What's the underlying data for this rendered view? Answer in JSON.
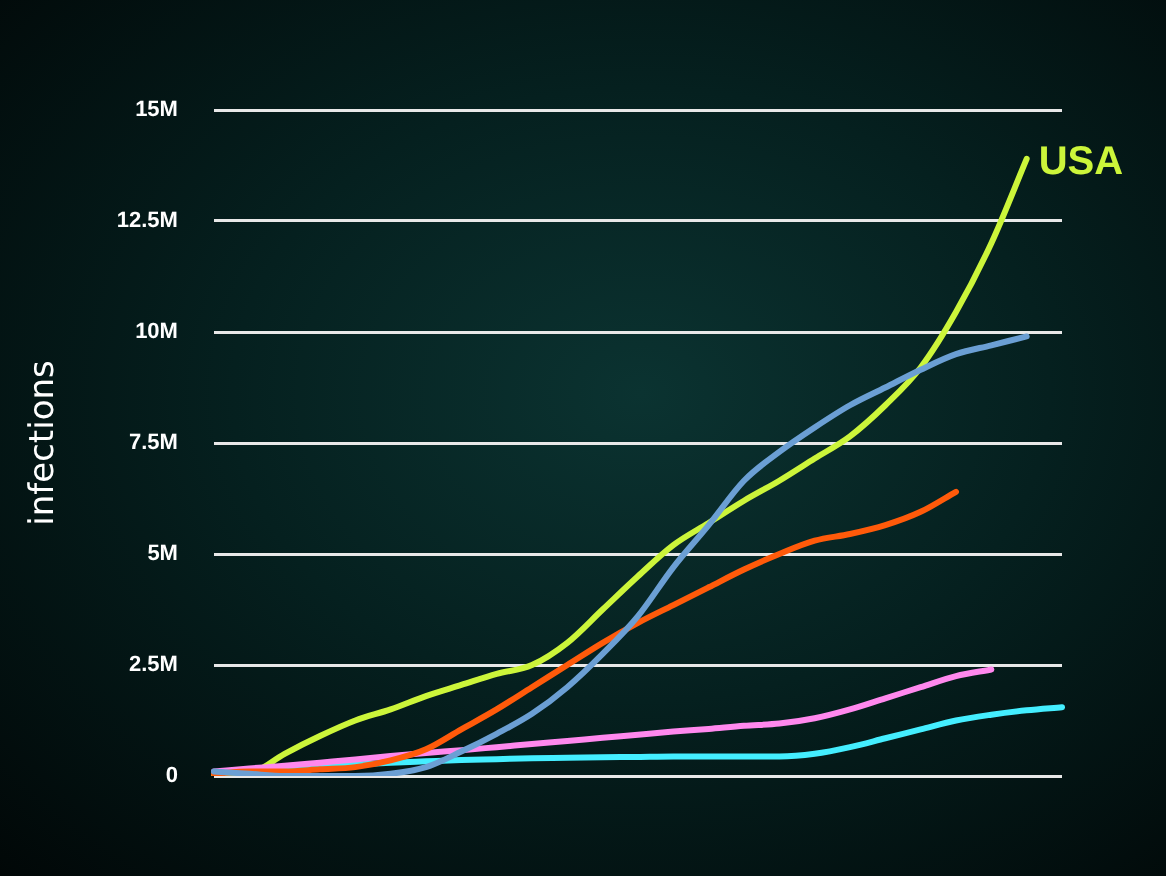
{
  "chart_data": {
    "type": "line",
    "ylabel": "infections",
    "categories": [
      null,
      null,
      null,
      null,
      null,
      null,
      null,
      null,
      null,
      null,
      null,
      null,
      null,
      null,
      null,
      null,
      null,
      null,
      null,
      null,
      null,
      null,
      null,
      null,
      null
    ],
    "ylim": [
      0,
      15
    ],
    "yticks": [
      {
        "value": 0,
        "label": "0"
      },
      {
        "value": 2.5,
        "label": "2.5M"
      },
      {
        "value": 5,
        "label": "5M"
      },
      {
        "value": 7.5,
        "label": "7.5M"
      },
      {
        "value": 10,
        "label": "10M"
      },
      {
        "value": 12.5,
        "label": "12.5M"
      },
      {
        "value": 15,
        "label": "15M"
      }
    ],
    "grid": "y",
    "tick_labels": "y",
    "legend": false,
    "marker": "none",
    "line_style": "solid",
    "series": [
      {
        "color": "#6b9fd4",
        "values": [
          0.1,
          0.05,
          0,
          0,
          0,
          0.05,
          0.2,
          0.55,
          0.95,
          1.4,
          2.0,
          2.75,
          3.6,
          4.7,
          5.65,
          6.65,
          7.3,
          7.85,
          8.35,
          8.75,
          9.15,
          9.5,
          9.7,
          9.9,
          null
        ]
      },
      {
        "color": "#ff5a0a",
        "values": [
          0.05,
          0.1,
          0.1,
          0.15,
          0.2,
          0.35,
          0.6,
          1.05,
          1.5,
          2.0,
          2.5,
          3.0,
          3.45,
          3.85,
          4.25,
          4.65,
          5.0,
          5.3,
          5.45,
          5.65,
          5.95,
          6.4,
          null,
          null,
          null
        ]
      },
      {
        "color": "#ff88ee",
        "values": [
          0.1,
          0.17,
          0.23,
          0.3,
          0.37,
          0.45,
          0.52,
          0.58,
          0.65,
          0.72,
          0.79,
          0.86,
          0.93,
          1.0,
          1.06,
          1.13,
          1.18,
          1.3,
          1.5,
          1.75,
          2.0,
          2.25,
          2.4,
          null,
          null
        ]
      },
      {
        "color": "#44eeff",
        "values": [
          null,
          null,
          0.18,
          0.22,
          0.26,
          0.3,
          0.33,
          0.36,
          0.38,
          0.4,
          0.41,
          0.42,
          0.43,
          0.44,
          0.44,
          0.44,
          0.44,
          0.5,
          0.65,
          0.85,
          1.05,
          1.25,
          1.38,
          1.48,
          1.55
        ]
      },
      {
        "name": "USA",
        "color": "#ccf53a",
        "values": [
          0,
          0.05,
          0.5,
          0.9,
          1.25,
          1.5,
          1.8,
          2.05,
          2.3,
          2.5,
          3.0,
          3.75,
          4.5,
          5.2,
          5.7,
          6.2,
          6.65,
          7.15,
          7.65,
          8.35,
          9.2,
          10.45,
          12.0,
          13.9,
          null
        ]
      }
    ]
  }
}
